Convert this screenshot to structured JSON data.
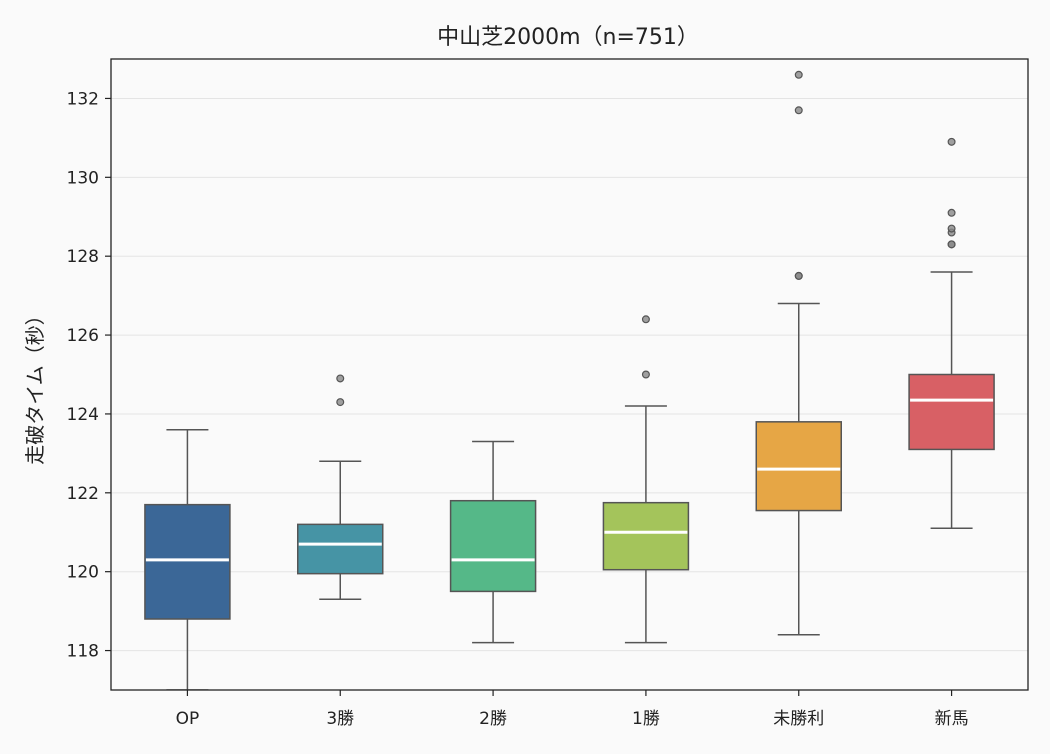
{
  "chart_data": {
    "type": "box",
    "title": "中山芝2000m（n=751）",
    "xlabel": "",
    "ylabel": "走破タイム（秒）",
    "ylim": [
      117,
      133
    ],
    "yticks": [
      118,
      120,
      122,
      124,
      126,
      128,
      130,
      132
    ],
    "grid": "horizontal",
    "categories": [
      "OP",
      "3勝",
      "2勝",
      "1勝",
      "未勝利",
      "新馬"
    ],
    "boxes": [
      {
        "category": "OP",
        "whisker_low": 117.0,
        "q1": 118.8,
        "median": 120.3,
        "q3": 121.7,
        "whisker_high": 123.6,
        "outliers": []
      },
      {
        "category": "3勝",
        "whisker_low": 119.3,
        "q1": 119.95,
        "median": 120.7,
        "q3": 121.2,
        "whisker_high": 122.8,
        "outliers": [
          124.3,
          124.9
        ]
      },
      {
        "category": "2勝",
        "whisker_low": 118.2,
        "q1": 119.5,
        "median": 120.3,
        "q3": 121.8,
        "whisker_high": 123.3,
        "outliers": []
      },
      {
        "category": "1勝",
        "whisker_low": 118.2,
        "q1": 120.05,
        "median": 121.0,
        "q3": 121.75,
        "whisker_high": 124.2,
        "outliers": [
          125.0,
          126.4
        ]
      },
      {
        "category": "未勝利",
        "whisker_low": 118.4,
        "q1": 121.55,
        "median": 122.6,
        "q3": 123.8,
        "whisker_high": 126.8,
        "outliers": [
          127.5,
          127.5,
          131.7,
          132.6
        ]
      },
      {
        "category": "新馬",
        "whisker_low": 121.1,
        "q1": 123.1,
        "median": 124.35,
        "q3": 125.0,
        "whisker_high": 127.6,
        "outliers": [
          128.3,
          128.3,
          128.6,
          128.7,
          129.1,
          130.9
        ]
      }
    ],
    "colors": [
      "#3b6797",
      "#4694a5",
      "#55b888",
      "#a4c45b",
      "#e6a645",
      "#d86065"
    ],
    "median_color": "#ffffff",
    "outline_color": "#555555",
    "outlier_color": "#888888"
  }
}
